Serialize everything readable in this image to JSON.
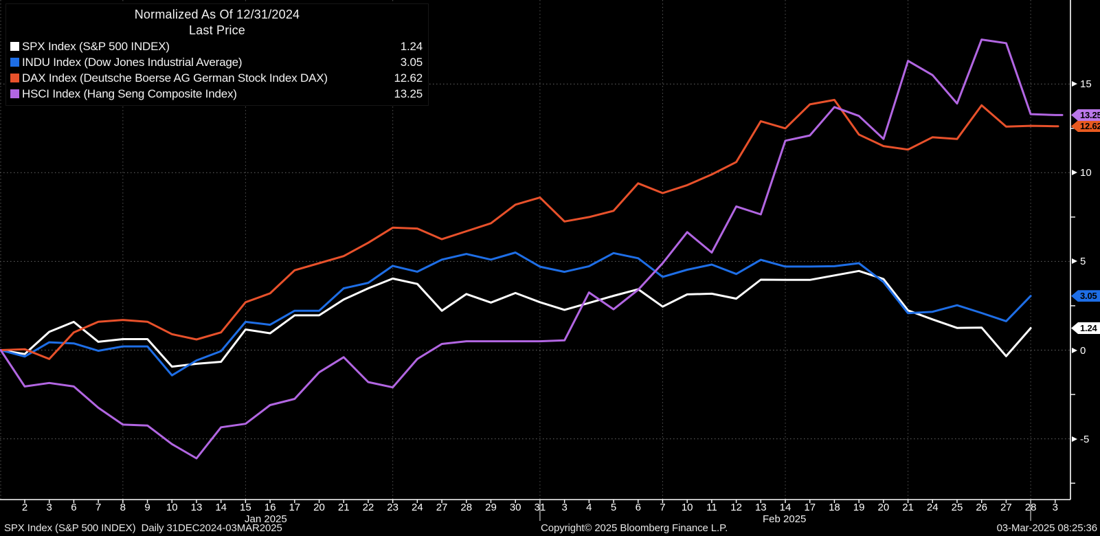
{
  "legend": {
    "title": "Normalized As Of 12/31/2024",
    "subtitle": "Last Price"
  },
  "footer": {
    "left": "SPX Index (S&P 500 INDEX)  Daily 31DEC2024-03MAR2025",
    "copyright": "Copyright© 2025 Bloomberg Finance L.P.",
    "timestamp": "03-Mar-2025 08:25:36"
  },
  "chart_data": {
    "type": "line",
    "title": "Normalized As Of 12/31/2024 - Last Price",
    "x_dates": [
      "12/31",
      "1/2",
      "1/3",
      "1/6",
      "1/7",
      "1/8",
      "1/9",
      "1/10",
      "1/13",
      "1/14",
      "1/15",
      "1/16",
      "1/17",
      "1/20",
      "1/21",
      "1/22",
      "1/23",
      "1/24",
      "1/27",
      "1/28",
      "1/29",
      "1/30",
      "1/31",
      "2/3",
      "2/4",
      "2/5",
      "2/6",
      "2/7",
      "2/10",
      "2/11",
      "2/12",
      "2/13",
      "2/14",
      "2/17",
      "2/18",
      "2/19",
      "2/20",
      "2/21",
      "2/24",
      "2/25",
      "2/26",
      "2/27",
      "2/28",
      "3/3"
    ],
    "x_tick_labels": [
      "2",
      "3",
      "6",
      "7",
      "8",
      "9",
      "10",
      "13",
      "14",
      "15",
      "16",
      "17",
      "20",
      "21",
      "22",
      "23",
      "24",
      "27",
      "28",
      "29",
      "30",
      "31",
      "3",
      "4",
      "5",
      "6",
      "7",
      "10",
      "11",
      "12",
      "13",
      "14",
      "17",
      "18",
      "19",
      "20",
      "21",
      "24",
      "25",
      "26",
      "27",
      "28",
      "3"
    ],
    "month_labels": [
      {
        "text": "Jan 2025",
        "x": 356
      },
      {
        "text": "Feb 2025",
        "x": 1110
      }
    ],
    "month_separator_indices": [
      22,
      42
    ],
    "vgrid_indices": [
      0,
      5,
      10,
      16,
      22,
      27,
      32,
      37,
      42
    ],
    "y_ticks": [
      "15",
      "10",
      "5",
      "0",
      "-5"
    ],
    "y_tick_values": [
      15,
      10,
      5,
      0,
      -5
    ],
    "y_minor_tick_values": [
      12.5,
      7.5,
      2.5,
      -2.5,
      -7.5
    ],
    "ylim": [
      -8.4,
      19.7
    ],
    "grid": true,
    "legend_position": "top-left",
    "series": [
      {
        "name": "SPX Index (S&P 500 INDEX)",
        "short_name": "SPX",
        "last_label": "1.24",
        "color": "#ffffff",
        "chip_color": "#ffffff",
        "extend_to": 0,
        "values": [
          0,
          -0.22,
          1.03,
          1.59,
          0.47,
          0.62,
          0.62,
          -0.93,
          -0.77,
          -0.66,
          1.16,
          0.95,
          1.96,
          1.96,
          2.85,
          3.48,
          4.03,
          3.73,
          2.22,
          3.16,
          2.68,
          3.22,
          2.7,
          2.27,
          2.66,
          3.06,
          3.43,
          2.45,
          3.14,
          3.18,
          2.9,
          3.97,
          3.96,
          3.96,
          4.21,
          4.46,
          4.01,
          2.24,
          1.73,
          1.25,
          1.27,
          -0.34,
          1.24,
          null
        ]
      },
      {
        "name": "INDU Index (Dow Jones Industrial Average)",
        "short_name": "INDU",
        "last_label": "3.05",
        "color": "#1e6ee6",
        "chip_color": "#1e6ee6",
        "extend_to": 0,
        "values": [
          0,
          -0.36,
          0.44,
          0.38,
          -0.04,
          0.21,
          0.21,
          -1.42,
          -0.58,
          -0.06,
          1.59,
          1.43,
          2.22,
          2.22,
          3.48,
          3.79,
          4.75,
          4.42,
          5.1,
          5.42,
          5.1,
          5.5,
          4.7,
          4.41,
          4.73,
          5.47,
          5.18,
          4.13,
          4.53,
          4.82,
          4.29,
          5.09,
          4.71,
          4.71,
          4.73,
          4.9,
          3.84,
          2.08,
          2.16,
          2.53,
          2.09,
          1.63,
          3.05,
          null
        ]
      },
      {
        "name": "DAX Index (Deutsche Boerse AG German Stock Index DAX)",
        "short_name": "DAX",
        "last_label": "12.62",
        "color": "#e8512b",
        "chip_color": "#e85a20",
        "extend_to": 1540,
        "values": [
          0,
          0.05,
          -0.5,
          1.0,
          1.6,
          1.7,
          1.6,
          0.9,
          0.6,
          1.0,
          2.7,
          3.2,
          4.5,
          4.9,
          5.3,
          6.05,
          6.9,
          6.85,
          6.25,
          6.7,
          7.15,
          8.2,
          8.6,
          7.25,
          7.5,
          7.85,
          9.4,
          8.85,
          9.3,
          9.9,
          10.6,
          12.9,
          12.5,
          13.85,
          14.1,
          12.15,
          11.5,
          11.3,
          12.0,
          11.9,
          13.8,
          12.6,
          12.64,
          12.62
        ]
      },
      {
        "name": "HSCI Index (Hang Seng Composite Index)",
        "short_name": "HSCI",
        "last_label": "13.25",
        "color": "#b266e2",
        "chip_color": "#bb78ea",
        "extend_to": 1546,
        "values": [
          0,
          -2.05,
          -1.85,
          -2.05,
          -3.25,
          -4.2,
          -4.25,
          -5.3,
          -6.1,
          -4.35,
          -4.15,
          -3.1,
          -2.75,
          -1.25,
          -0.4,
          -1.8,
          -2.1,
          -0.5,
          0.35,
          0.5,
          0.5,
          0.5,
          0.5,
          0.55,
          3.25,
          2.3,
          3.4,
          4.9,
          6.65,
          5.5,
          8.1,
          7.65,
          11.8,
          12.1,
          13.7,
          13.2,
          11.9,
          16.3,
          15.5,
          13.9,
          17.5,
          17.3,
          13.3,
          13.25
        ]
      }
    ]
  }
}
